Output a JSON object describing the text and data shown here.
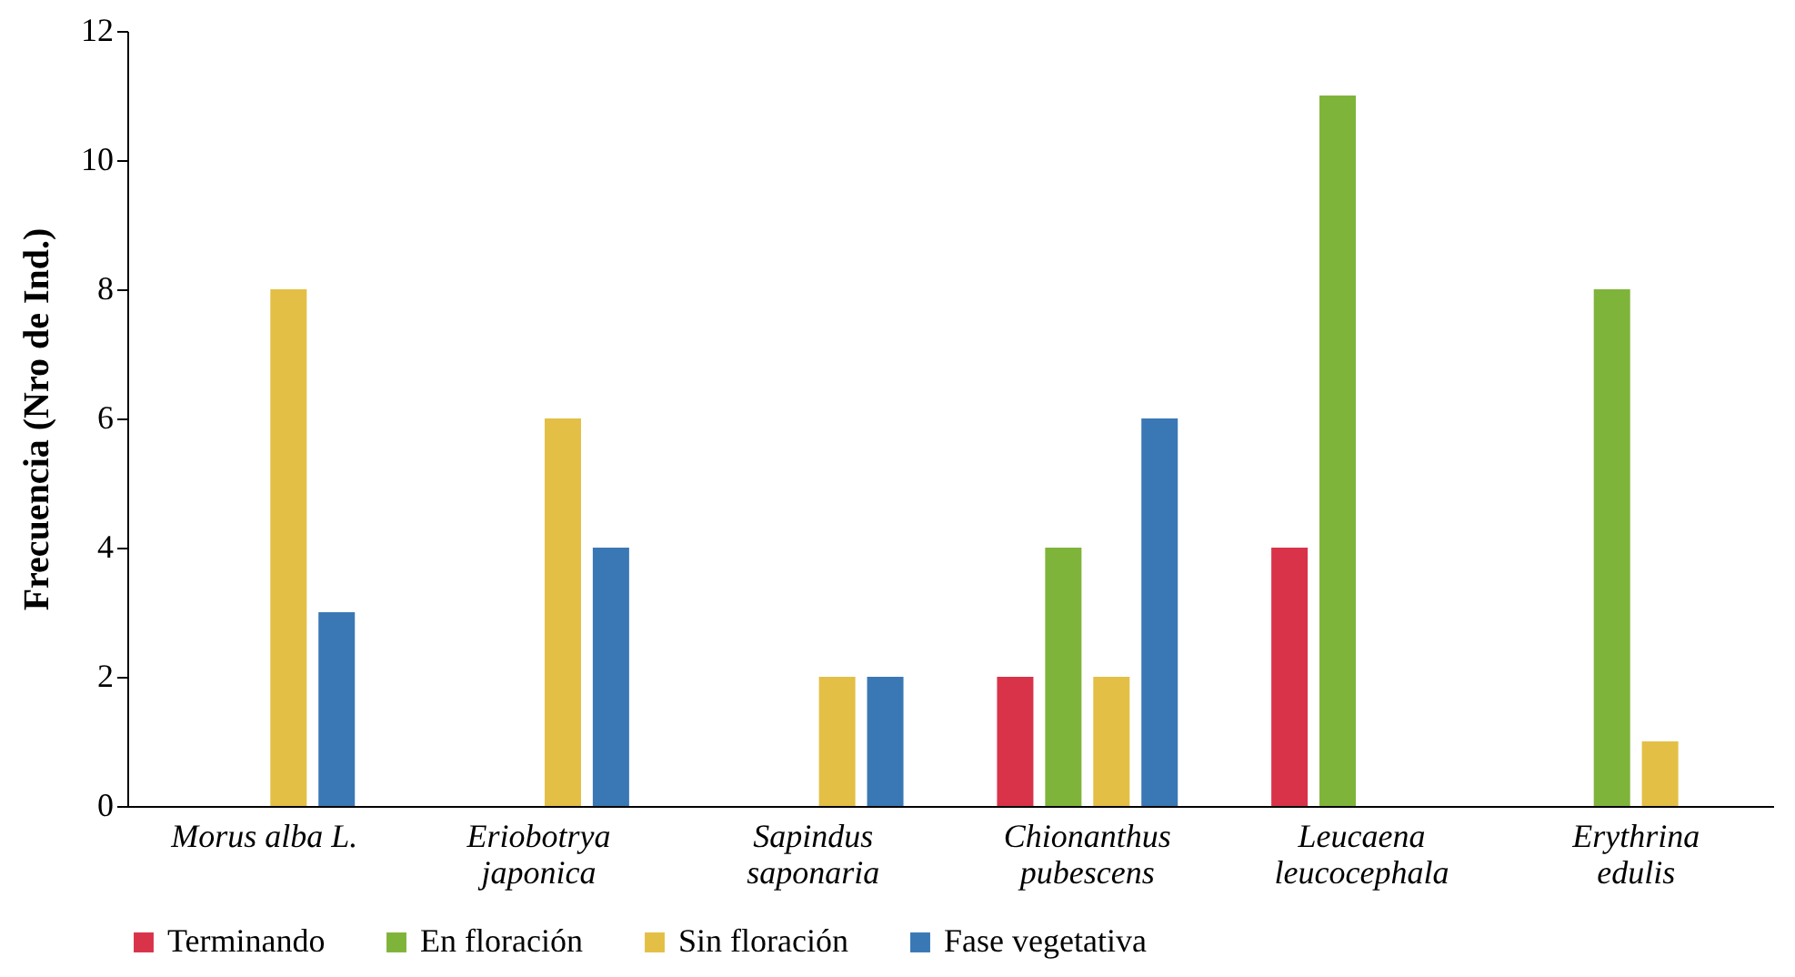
{
  "chart_data": {
    "type": "bar",
    "ylabel": "Frecuencia (Nro de Ind.)",
    "categories": [
      "Morus alba L.",
      "Eriobotrya japonica",
      "Sapindus saponaria",
      "Chionanthus pubescens",
      "Leucaena leucocephala",
      "Erythrina edulis"
    ],
    "series": [
      {
        "name": "Terminando",
        "color": "#d9334a",
        "values": [
          null,
          null,
          null,
          2,
          4,
          null
        ]
      },
      {
        "name": "En floración",
        "color": "#7fb43a",
        "values": [
          null,
          null,
          null,
          4,
          11,
          8
        ]
      },
      {
        "name": "Sin floración",
        "color": "#e3bf45",
        "values": [
          8,
          6,
          2,
          2,
          null,
          1
        ]
      },
      {
        "name": "Fase vegetativa",
        "color": "#3a78b5",
        "values": [
          3,
          4,
          2,
          6,
          null,
          null
        ]
      }
    ],
    "ylim": [
      0,
      12
    ],
    "yticks": [
      0,
      2,
      4,
      6,
      8,
      10,
      12
    ],
    "grid": false,
    "legend": "bottom"
  }
}
